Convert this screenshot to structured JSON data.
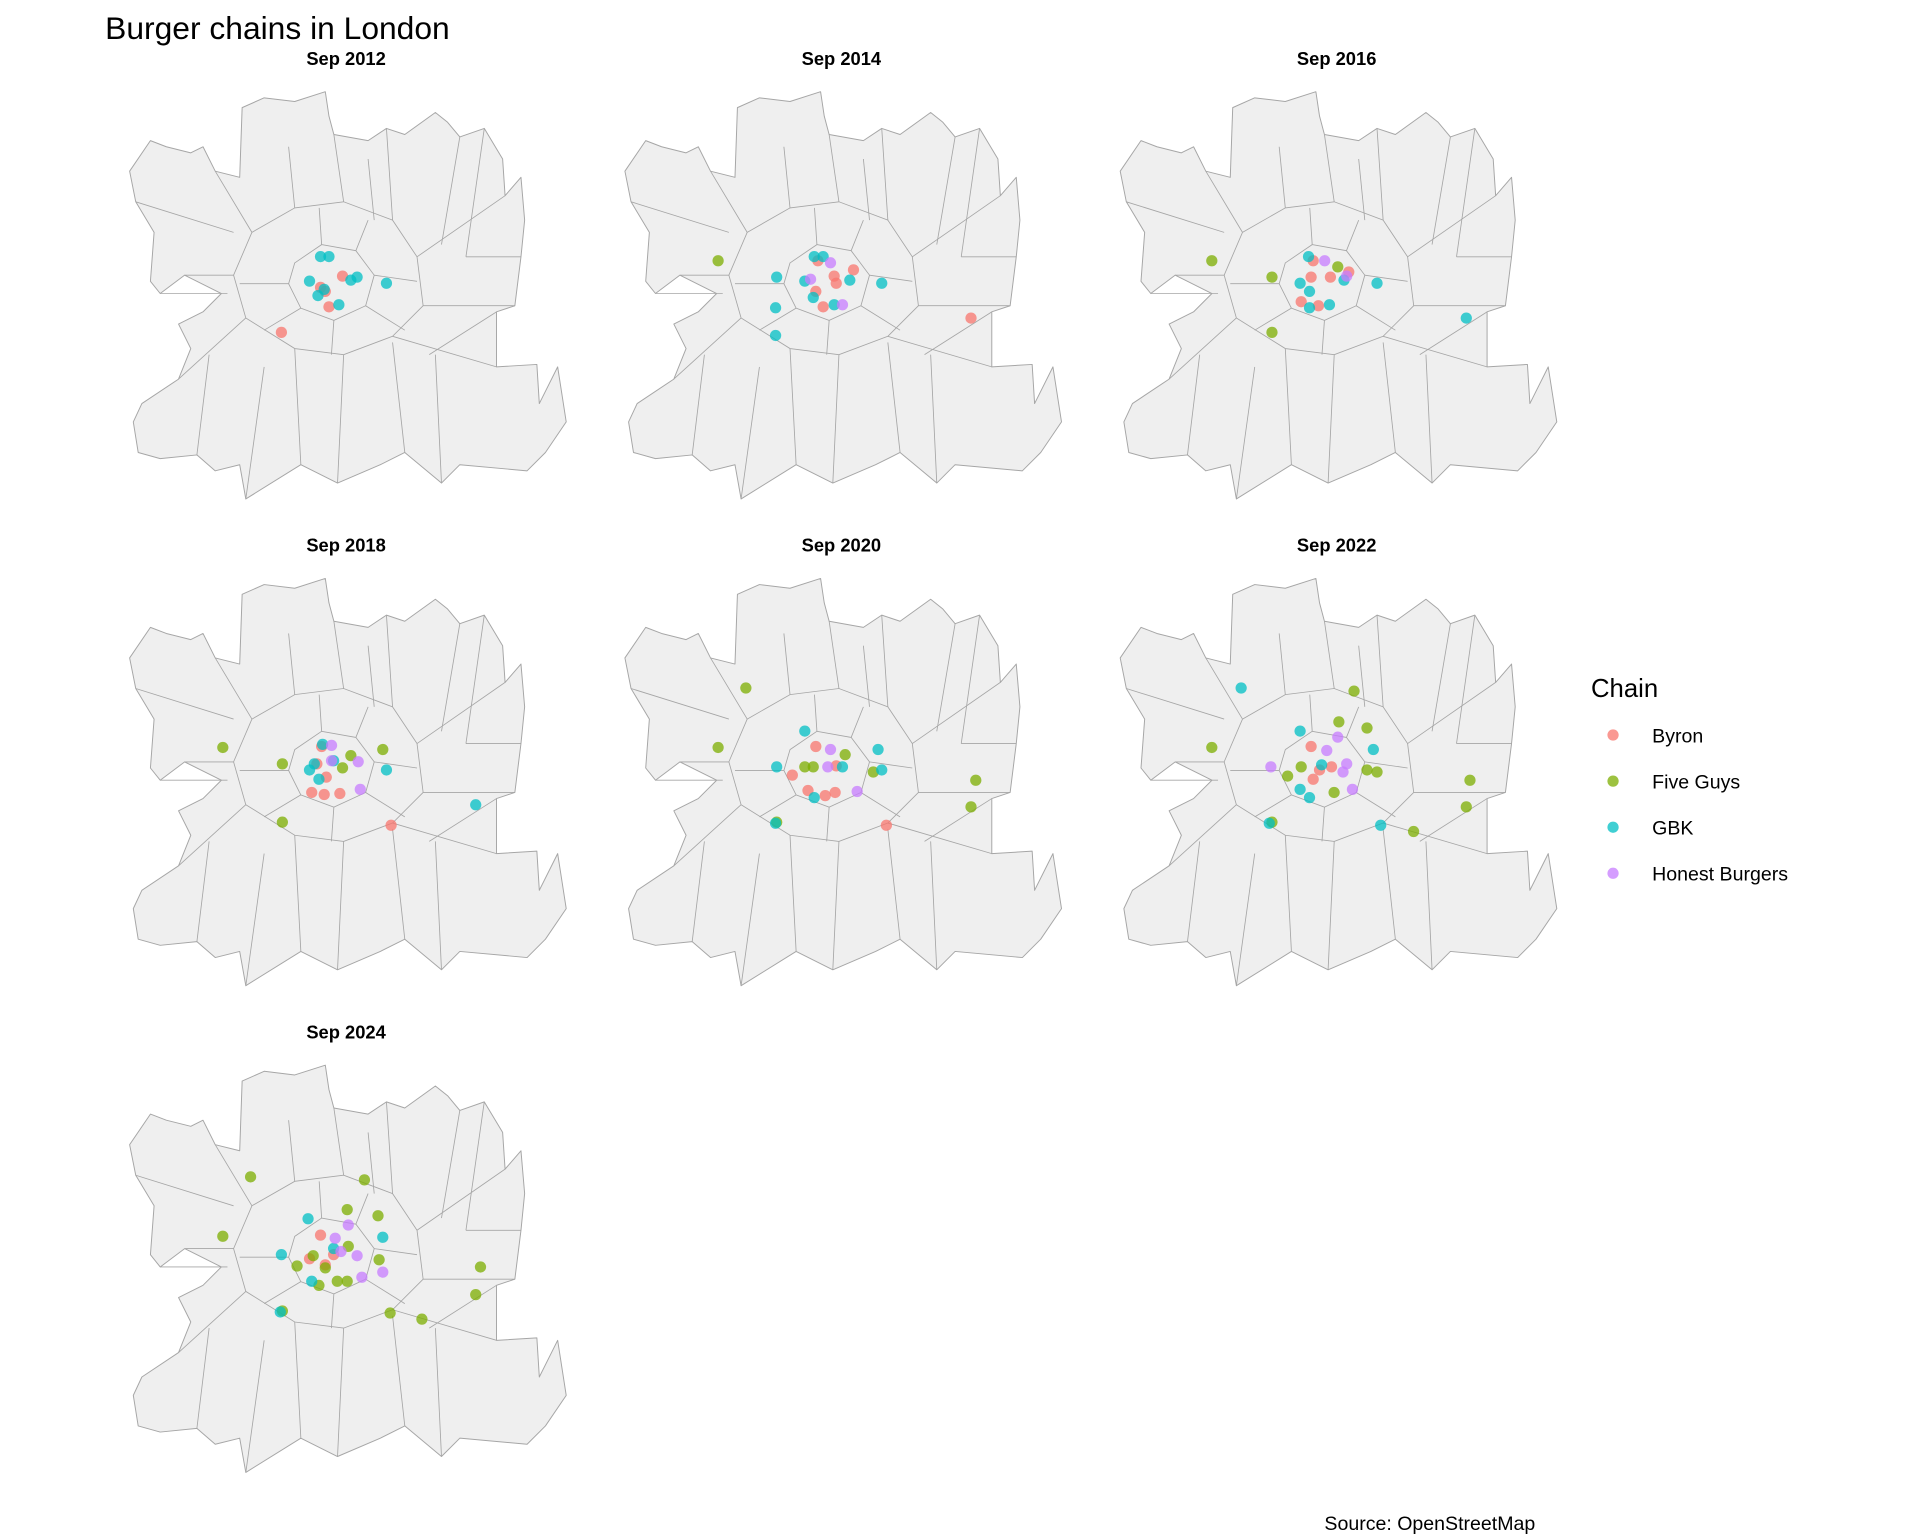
{
  "chart_data": {
    "type": "scatter",
    "title": "Burger chains in London",
    "caption": "Source: OpenStreetMap",
    "x_unit": "longitude",
    "y_unit": "latitude",
    "legend": {
      "title": "Chain",
      "position": "right",
      "entries": [
        {
          "name": "Byron",
          "color": "#F8766D"
        },
        {
          "name": "Five Guys",
          "color": "#7CAE00"
        },
        {
          "name": "GBK",
          "color": "#00BFC4"
        },
        {
          "name": "Honest Burgers",
          "color": "#C77CFF"
        }
      ]
    },
    "facets": [
      {
        "label": "Sep 2012",
        "points": {
          "Byron": [
            [
              -0.14,
              51.499
            ],
            [
              -0.131,
              51.495
            ],
            [
              -0.124,
              51.48
            ],
            [
              -0.098,
              51.51
            ],
            [
              -0.215,
              51.455
            ]
          ],
          "Five Guys": [],
          "GBK": [
            [
              -0.14,
              51.529
            ],
            [
              -0.124,
              51.529
            ],
            [
              -0.161,
              51.505
            ],
            [
              -0.145,
              51.491
            ],
            [
              -0.105,
              51.482
            ],
            [
              -0.07,
              51.509
            ],
            [
              -0.082,
              51.506
            ],
            [
              -0.014,
              51.503
            ],
            [
              -0.133,
              51.497
            ]
          ],
          "Honest Burgers": []
        }
      },
      {
        "label": "Sep 2014",
        "points": {
          "Byron": [
            [
              -0.136,
              51.525
            ],
            [
              -0.105,
              51.51
            ],
            [
              -0.101,
              51.503
            ],
            [
              -0.068,
              51.516
            ],
            [
              -0.14,
              51.495
            ],
            [
              -0.126,
              51.48
            ],
            [
              0.157,
              51.469
            ]
          ],
          "Five Guys": [
            [
              -0.327,
              51.525
            ]
          ],
          "GBK": [
            [
              -0.143,
              51.529
            ],
            [
              -0.126,
              51.529
            ],
            [
              -0.215,
              51.509
            ],
            [
              -0.161,
              51.505
            ],
            [
              -0.145,
              51.489
            ],
            [
              -0.075,
              51.506
            ],
            [
              -0.014,
              51.503
            ],
            [
              -0.217,
              51.479
            ],
            [
              -0.217,
              51.452
            ],
            [
              -0.105,
              51.482
            ]
          ],
          "Honest Burgers": [
            [
              -0.112,
              51.523
            ],
            [
              -0.15,
              51.507
            ],
            [
              -0.089,
              51.482
            ]
          ]
        }
      },
      {
        "label": "Sep 2016",
        "points": {
          "Byron": [
            [
              -0.136,
              51.525
            ],
            [
              -0.14,
              51.509
            ],
            [
              -0.103,
              51.509
            ],
            [
              -0.068,
              51.514
            ],
            [
              -0.159,
              51.485
            ],
            [
              -0.126,
              51.481
            ]
          ],
          "Five Guys": [
            [
              -0.33,
              51.525
            ],
            [
              -0.215,
              51.509
            ],
            [
              -0.089,
              51.519
            ],
            [
              -0.215,
              51.455
            ]
          ],
          "GBK": [
            [
              -0.145,
              51.529
            ],
            [
              -0.161,
              51.503
            ],
            [
              -0.143,
              51.495
            ],
            [
              -0.105,
              51.482
            ],
            [
              -0.143,
              51.479
            ],
            [
              -0.077,
              51.506
            ],
            [
              -0.014,
              51.503
            ],
            [
              0.157,
              51.469
            ]
          ],
          "Honest Burgers": [
            [
              -0.114,
              51.525
            ],
            [
              -0.072,
              51.51
            ]
          ]
        }
      },
      {
        "label": "Sep 2018",
        "points": {
          "Byron": [
            [
              -0.138,
              51.526
            ],
            [
              -0.129,
              51.496
            ],
            [
              -0.157,
              51.481
            ],
            [
              -0.133,
              51.479
            ],
            [
              -0.103,
              51.48
            ],
            [
              -0.005,
              51.449
            ],
            [
              -0.147,
              51.509
            ]
          ],
          "Five Guys": [
            [
              -0.327,
              51.525
            ],
            [
              -0.213,
              51.509
            ],
            [
              -0.021,
              51.523
            ],
            [
              -0.082,
              51.517
            ],
            [
              -0.098,
              51.505
            ],
            [
              -0.213,
              51.452
            ]
          ],
          "GBK": [
            [
              -0.152,
              51.509
            ],
            [
              -0.136,
              51.528
            ],
            [
              -0.161,
              51.503
            ],
            [
              -0.143,
              51.494
            ],
            [
              -0.014,
              51.503
            ],
            [
              0.157,
              51.469
            ],
            [
              -0.115,
              51.512
            ]
          ],
          "Honest Burgers": [
            [
              -0.119,
              51.527
            ],
            [
              -0.119,
              51.512
            ],
            [
              -0.068,
              51.511
            ],
            [
              -0.064,
              51.484
            ]
          ]
        }
      },
      {
        "label": "Sep 2020",
        "points": {
          "Byron": [
            [
              -0.14,
              51.526
            ],
            [
              -0.101,
              51.507
            ],
            [
              -0.185,
              51.498
            ],
            [
              -0.155,
              51.483
            ],
            [
              -0.122,
              51.478
            ],
            [
              -0.103,
              51.481
            ],
            [
              -0.005,
              51.449
            ]
          ],
          "Five Guys": [
            [
              -0.274,
              51.583
            ],
            [
              -0.327,
              51.525
            ],
            [
              -0.161,
              51.506
            ],
            [
              -0.145,
              51.506
            ],
            [
              -0.084,
              51.518
            ],
            [
              -0.03,
              51.501
            ],
            [
              0.166,
              51.493
            ],
            [
              0.157,
              51.467
            ],
            [
              -0.215,
              51.452
            ]
          ],
          "GBK": [
            [
              -0.161,
              51.541
            ],
            [
              -0.021,
              51.523
            ],
            [
              -0.014,
              51.503
            ],
            [
              -0.089,
              51.506
            ],
            [
              -0.143,
              51.476
            ],
            [
              -0.217,
              51.451
            ],
            [
              -0.215,
              51.506
            ]
          ],
          "Honest Burgers": [
            [
              -0.112,
              51.523
            ],
            [
              -0.061,
              51.482
            ],
            [
              -0.117,
              51.506
            ]
          ]
        }
      },
      {
        "label": "Sep 2022",
        "points": {
          "Byron": [
            [
              -0.14,
              51.526
            ],
            [
              -0.124,
              51.503
            ],
            [
              -0.136,
              51.494
            ],
            [
              -0.101,
              51.506
            ]
          ],
          "Five Guys": [
            [
              -0.33,
              51.525
            ],
            [
              -0.215,
              51.452
            ],
            [
              -0.087,
              51.55
            ],
            [
              -0.058,
              51.58
            ],
            [
              -0.033,
              51.544
            ],
            [
              -0.185,
              51.497
            ],
            [
              -0.159,
              51.506
            ],
            [
              -0.033,
              51.503
            ],
            [
              -0.014,
              51.501
            ],
            [
              0.164,
              51.493
            ],
            [
              0.157,
              51.467
            ],
            [
              0.056,
              51.443
            ],
            [
              -0.096,
              51.481
            ]
          ],
          "GBK": [
            [
              -0.274,
              51.583
            ],
            [
              -0.161,
              51.541
            ],
            [
              -0.021,
              51.523
            ],
            [
              -0.143,
              51.476
            ],
            [
              -0.22,
              51.451
            ],
            [
              -0.007,
              51.449
            ],
            [
              -0.12,
              51.508
            ],
            [
              -0.161,
              51.484
            ]
          ],
          "Honest Burgers": [
            [
              -0.089,
              51.535
            ],
            [
              -0.11,
              51.522
            ],
            [
              -0.072,
              51.509
            ],
            [
              -0.061,
              51.484
            ],
            [
              -0.217,
              51.506
            ],
            [
              -0.079,
              51.501
            ]
          ]
        }
      },
      {
        "label": "Sep 2024",
        "points": {
          "Byron": [
            [
              -0.14,
              51.524
            ],
            [
              -0.161,
              51.501
            ],
            [
              -0.131,
              51.495
            ],
            [
              -0.115,
              51.505
            ]
          ],
          "Five Guys": [
            [
              -0.274,
              51.581
            ],
            [
              -0.056,
              51.578
            ],
            [
              -0.327,
              51.523
            ],
            [
              -0.089,
              51.549
            ],
            [
              -0.03,
              51.543
            ],
            [
              -0.185,
              51.494
            ],
            [
              -0.143,
              51.475
            ],
            [
              -0.108,
              51.479
            ],
            [
              -0.089,
              51.479
            ],
            [
              -0.028,
              51.5
            ],
            [
              -0.007,
              51.448
            ],
            [
              0.054,
              51.442
            ],
            [
              0.157,
              51.466
            ],
            [
              0.166,
              51.493
            ],
            [
              -0.213,
              51.45
            ],
            [
              -0.154,
              51.504
            ],
            [
              -0.087,
              51.513
            ],
            [
              -0.131,
              51.492
            ]
          ],
          "GBK": [
            [
              -0.164,
              51.54
            ],
            [
              -0.021,
              51.522
            ],
            [
              -0.215,
              51.505
            ],
            [
              -0.157,
              51.479
            ],
            [
              -0.115,
              51.511
            ],
            [
              -0.217,
              51.449
            ]
          ],
          "Honest Burgers": [
            [
              -0.087,
              51.534
            ],
            [
              -0.112,
              51.521
            ],
            [
              -0.07,
              51.504
            ],
            [
              -0.021,
              51.488
            ],
            [
              -0.061,
              51.483
            ],
            [
              -0.101,
              51.508
            ]
          ]
        }
      }
    ]
  }
}
